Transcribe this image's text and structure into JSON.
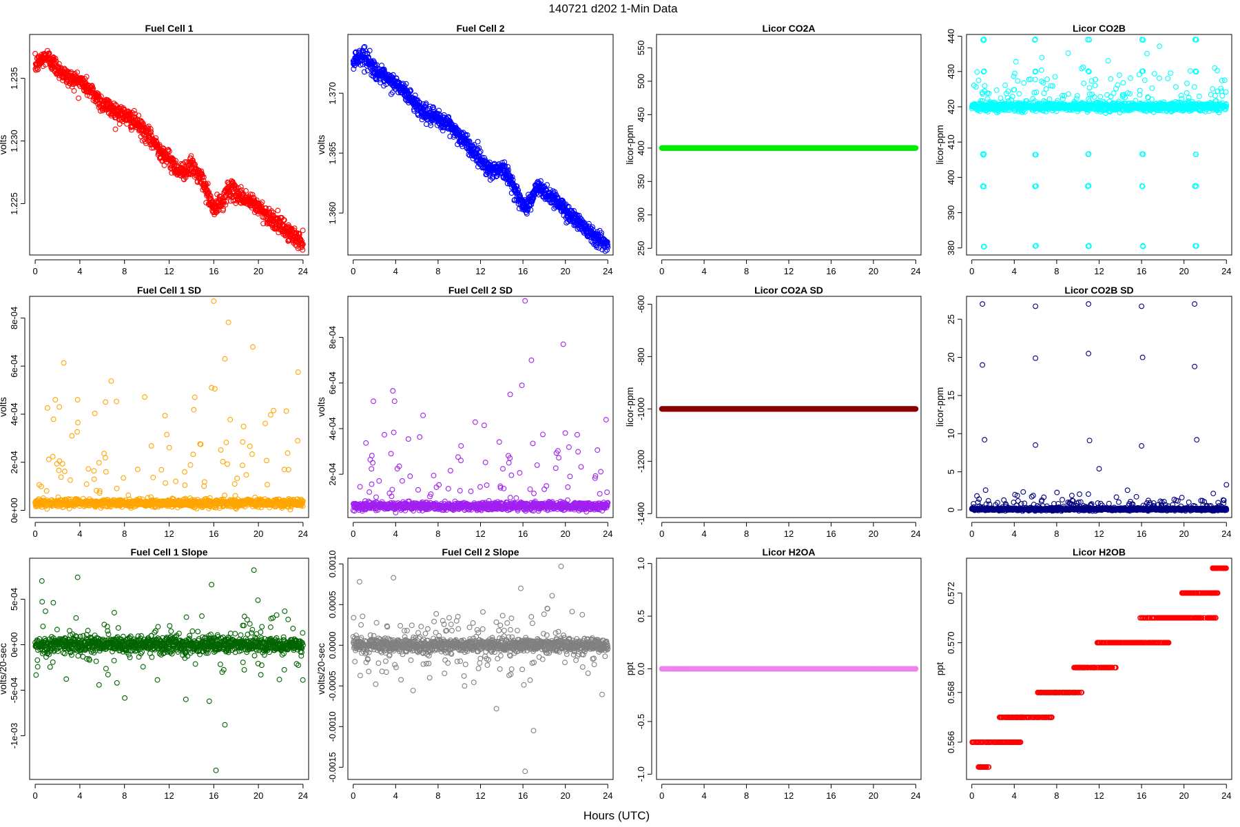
{
  "figure": {
    "title": "140721   d202   1-Min Data",
    "xlabel": "Hours (UTC)"
  },
  "chart_data": [
    {
      "type": "scatter",
      "title": "Fuel Cell 1",
      "ylabel": "volts",
      "color": "#ff0000",
      "xlim": [
        -0.5,
        24.5
      ],
      "ylim": [
        1.2209,
        1.2385
      ],
      "xticks": [
        0,
        4,
        8,
        12,
        16,
        20,
        24
      ],
      "xtick_labels": [
        "0",
        "4",
        "8",
        "12",
        "16",
        "20",
        "24"
      ],
      "yticks": [
        1.225,
        1.23,
        1.235
      ],
      "ytick_labels": [
        "1.225",
        "1.230",
        "1.235"
      ],
      "pattern": "trend",
      "trend": [
        [
          0,
          1.236
        ],
        [
          1,
          1.2368
        ],
        [
          2,
          1.2358
        ],
        [
          3,
          1.235
        ],
        [
          4,
          1.2348
        ],
        [
          5,
          1.234
        ],
        [
          6,
          1.233
        ],
        [
          7,
          1.2325
        ],
        [
          8,
          1.232
        ],
        [
          9,
          1.2315
        ],
        [
          10,
          1.2305
        ],
        [
          11,
          1.2295
        ],
        [
          12,
          1.2285
        ],
        [
          13,
          1.2275
        ],
        [
          14,
          1.228
        ],
        [
          15,
          1.2268
        ],
        [
          16,
          1.2245
        ],
        [
          16.8,
          1.2252
        ],
        [
          17.3,
          1.2262
        ],
        [
          19,
          1.2253
        ],
        [
          20,
          1.2247
        ],
        [
          22,
          1.2232
        ],
        [
          24,
          1.2218
        ]
      ],
      "noise": 0.00035
    },
    {
      "type": "scatter",
      "title": "Fuel Cell 2",
      "ylabel": "volts",
      "color": "#0000ff",
      "xlim": [
        -0.5,
        24.5
      ],
      "ylim": [
        1.3565,
        1.3749
      ],
      "xticks": [
        0,
        4,
        8,
        12,
        16,
        20,
        24
      ],
      "xtick_labels": [
        "0",
        "4",
        "8",
        "12",
        "16",
        "20",
        "24"
      ],
      "yticks": [
        1.36,
        1.365,
        1.37
      ],
      "ytick_labels": [
        "1.360",
        "1.365",
        "1.370"
      ],
      "pattern": "trend",
      "trend": [
        [
          0,
          1.3728
        ],
        [
          1,
          1.3732
        ],
        [
          2,
          1.372
        ],
        [
          3,
          1.3712
        ],
        [
          4,
          1.3708
        ],
        [
          5,
          1.37
        ],
        [
          6,
          1.369
        ],
        [
          7,
          1.3682
        ],
        [
          8,
          1.3678
        ],
        [
          9,
          1.3674
        ],
        [
          10,
          1.3665
        ],
        [
          11,
          1.3655
        ],
        [
          12,
          1.3645
        ],
        [
          13,
          1.3635
        ],
        [
          14,
          1.3638
        ],
        [
          15,
          1.3625
        ],
        [
          16,
          1.3605
        ],
        [
          16.8,
          1.361
        ],
        [
          17.3,
          1.3622
        ],
        [
          19,
          1.3612
        ],
        [
          20,
          1.3602
        ],
        [
          22,
          1.3587
        ],
        [
          24,
          1.3572
        ]
      ],
      "noise": 0.00035
    },
    {
      "type": "scatter",
      "title": "Licor CO2A",
      "ylabel": "licor-ppm",
      "color": "#00ee00",
      "xlim": [
        -0.5,
        24.5
      ],
      "ylim": [
        240,
        570
      ],
      "xticks": [
        0,
        4,
        8,
        12,
        16,
        20,
        24
      ],
      "xtick_labels": [
        "0",
        "4",
        "8",
        "12",
        "16",
        "20",
        "24"
      ],
      "yticks": [
        250,
        300,
        350,
        400,
        450,
        500,
        550
      ],
      "ytick_labels": [
        "250",
        "300",
        "350",
        "400",
        "450",
        "500",
        "550"
      ],
      "pattern": "constant",
      "value": 400
    },
    {
      "type": "scatter",
      "title": "Licor CO2B",
      "ylabel": "licor-ppm",
      "color": "#00ffff",
      "xlim": [
        -0.5,
        24.5
      ],
      "ylim": [
        378,
        440.5
      ],
      "xticks": [
        0,
        4,
        8,
        12,
        16,
        20,
        24
      ],
      "xtick_labels": [
        "0",
        "4",
        "8",
        "12",
        "16",
        "20",
        "24"
      ],
      "yticks": [
        380,
        390,
        400,
        410,
        420,
        430,
        440
      ],
      "ytick_labels": [
        "380",
        "390",
        "400",
        "410",
        "420",
        "430",
        "440"
      ],
      "pattern": "baseline",
      "base": 420,
      "noise": 0.6,
      "spike_prob": 0.12,
      "spike_amp": 6,
      "spike_dir": "up",
      "spike_times": [
        1.1,
        6,
        11,
        16.1,
        21.1
      ],
      "spike_values": [
        439,
        430,
        406.5,
        397.5,
        380.5
      ]
    },
    {
      "type": "scatter",
      "title": "Fuel Cell 1 SD",
      "ylabel": "volts",
      "color": "#ffa500",
      "xlim": [
        -0.5,
        24.5
      ],
      "ylim": [
        -3e-05,
        0.00089
      ],
      "xticks": [
        0,
        4,
        8,
        12,
        16,
        20,
        24
      ],
      "xtick_labels": [
        "0",
        "4",
        "8",
        "12",
        "16",
        "20",
        "24"
      ],
      "yticks": [
        0,
        0.0002,
        0.0004,
        0.0006,
        0.0008
      ],
      "ytick_labels": [
        "0e+00",
        "2e-04",
        "4e-04",
        "6e-04",
        "8e-04"
      ],
      "pattern": "baseline",
      "base": 3e-05,
      "noise": 8e-06,
      "spike_prob": 0.07,
      "spike_amp": 0.00022,
      "spike_dir": "up",
      "outliers": [
        [
          16,
          0.00087
        ],
        [
          19.5,
          0.00068
        ],
        [
          17,
          0.00063
        ],
        [
          15.8,
          0.00051
        ],
        [
          1.8,
          0.00046
        ],
        [
          3.8,
          0.00046
        ],
        [
          14.3,
          0.00047
        ]
      ]
    },
    {
      "type": "scatter",
      "title": "Fuel Cell 2 SD",
      "ylabel": "volts",
      "color": "#a020f0",
      "xlim": [
        -0.5,
        24.5
      ],
      "ylim": [
        1e-05,
        0.00098
      ],
      "xticks": [
        0,
        4,
        8,
        12,
        16,
        20,
        24
      ],
      "xtick_labels": [
        "0",
        "4",
        "8",
        "12",
        "16",
        "20",
        "24"
      ],
      "yticks": [
        0.0002,
        0.0004,
        0.0006,
        0.0008
      ],
      "ytick_labels": [
        "2e-04",
        "4e-04",
        "6e-04",
        "8e-04"
      ],
      "pattern": "baseline",
      "base": 6e-05,
      "noise": 8e-06,
      "spike_prob": 0.07,
      "spike_amp": 0.00022,
      "spike_dir": "up",
      "outliers": [
        [
          16.2,
          0.00096
        ],
        [
          19.8,
          0.00077
        ],
        [
          16.8,
          0.0007
        ],
        [
          15.9,
          0.00059
        ],
        [
          1.9,
          0.00052
        ],
        [
          3.9,
          0.00052
        ],
        [
          14.8,
          0.00055
        ]
      ]
    },
    {
      "type": "scatter",
      "title": "Licor CO2A SD",
      "ylabel": "licor-ppm",
      "color": "#8b0000",
      "xlim": [
        -0.5,
        24.5
      ],
      "ylim": [
        -1415,
        -570
      ],
      "xticks": [
        0,
        4,
        8,
        12,
        16,
        20,
        24
      ],
      "xtick_labels": [
        "0",
        "4",
        "8",
        "12",
        "16",
        "20",
        "24"
      ],
      "yticks": [
        -1400,
        -1200,
        -1000,
        -800,
        -600
      ],
      "ytick_labels": [
        "-1400",
        "-1200",
        "-1000",
        "-800",
        "-600"
      ],
      "pattern": "constant",
      "value": -1000
    },
    {
      "type": "scatter",
      "title": "Licor CO2B SD",
      "ylabel": "licor-ppm",
      "color": "#000080",
      "xlim": [
        -0.5,
        24.5
      ],
      "ylim": [
        -1,
        28
      ],
      "xticks": [
        0,
        4,
        8,
        12,
        16,
        20,
        24
      ],
      "xtick_labels": [
        "0",
        "4",
        "8",
        "12",
        "16",
        "20",
        "24"
      ],
      "yticks": [
        0,
        5,
        10,
        15,
        20,
        25
      ],
      "ytick_labels": [
        "0",
        "5",
        "10",
        "15",
        "20",
        "25"
      ],
      "pattern": "baseline",
      "base": 0.1,
      "noise": 0.08,
      "spike_prob": 0.12,
      "spike_amp": 0.9,
      "spike_dir": "up",
      "outliers": [
        [
          1,
          27
        ],
        [
          6,
          26.7
        ],
        [
          11,
          27
        ],
        [
          16,
          26.7
        ],
        [
          21,
          27
        ],
        [
          1,
          19
        ],
        [
          6,
          19.9
        ],
        [
          11,
          20.5
        ],
        [
          16.1,
          20
        ],
        [
          21,
          18.8
        ],
        [
          1.2,
          9.2
        ],
        [
          6,
          8.5
        ],
        [
          11.1,
          9.1
        ],
        [
          16,
          8.4
        ],
        [
          21.2,
          9.2
        ],
        [
          12,
          5.4
        ],
        [
          24,
          3.3
        ],
        [
          1.3,
          2.6
        ]
      ]
    },
    {
      "type": "scatter",
      "title": "Fuel Cell 1 Slope",
      "ylabel": "volts/20-sec",
      "color": "#006400",
      "xlim": [
        -0.5,
        24.5
      ],
      "ylim": [
        -0.00148,
        0.00095
      ],
      "xticks": [
        0,
        4,
        8,
        12,
        16,
        20,
        24
      ],
      "xtick_labels": [
        "0",
        "4",
        "8",
        "12",
        "16",
        "20",
        "24"
      ],
      "yticks": [
        -0.001,
        -0.0005,
        0,
        0.0005
      ],
      "ytick_labels": [
        "-1e-03",
        "-5e-04",
        "0e+00",
        "5e-04"
      ],
      "pattern": "baseline",
      "base": 0,
      "noise": 4e-05,
      "spike_prob": 0.14,
      "spike_amp": 0.00022,
      "spike_dir": "both",
      "outliers": [
        [
          16.2,
          -0.00138
        ],
        [
          17,
          -0.00088
        ],
        [
          19.6,
          0.00082
        ],
        [
          3.8,
          0.00074
        ],
        [
          0.6,
          0.0007
        ],
        [
          15.8,
          0.00066
        ],
        [
          15.6,
          -0.00062
        ],
        [
          13.5,
          -0.0006
        ]
      ]
    },
    {
      "type": "scatter",
      "title": "Fuel Cell 2 Slope",
      "ylabel": "volts/20-sec",
      "color": "#808080",
      "xlim": [
        -0.5,
        24.5
      ],
      "ylim": [
        -0.00165,
        0.00107
      ],
      "xticks": [
        0,
        4,
        8,
        12,
        16,
        20,
        24
      ],
      "xtick_labels": [
        "0",
        "4",
        "8",
        "12",
        "16",
        "20",
        "24"
      ],
      "yticks": [
        -0.0015,
        -0.001,
        -0.0005,
        0,
        0.0005,
        0.001
      ],
      "ytick_labels": [
        "-0.0015",
        "-0.0010",
        "-0.0005",
        "0.0000",
        "0.0005",
        "0.0010"
      ],
      "pattern": "baseline",
      "base": 0,
      "noise": 4e-05,
      "spike_prob": 0.14,
      "spike_amp": 0.00022,
      "spike_dir": "both",
      "outliers": [
        [
          16.2,
          -0.00155
        ],
        [
          19.6,
          0.00097
        ],
        [
          17,
          -0.00105
        ],
        [
          3.8,
          0.00083
        ],
        [
          0.6,
          0.00078
        ],
        [
          15.8,
          0.0007
        ],
        [
          13.5,
          -0.00078
        ],
        [
          10.5,
          -0.0005
        ]
      ]
    },
    {
      "type": "scatter",
      "title": "Licor H2OA",
      "ylabel": "ppt",
      "color": "#ee82ee",
      "xlim": [
        -0.5,
        24.5
      ],
      "ylim": [
        -1.05,
        1.05
      ],
      "xticks": [
        0,
        4,
        8,
        12,
        16,
        20,
        24
      ],
      "xtick_labels": [
        "0",
        "4",
        "8",
        "12",
        "16",
        "20",
        "24"
      ],
      "yticks": [
        -1,
        -0.5,
        0,
        0.5,
        1
      ],
      "ytick_labels": [
        "-1.0",
        "-0.5",
        "0.0",
        "0.5",
        "1.0"
      ],
      "pattern": "constant",
      "value": 0
    },
    {
      "type": "scatter",
      "title": "Licor H2OB",
      "ylabel": "ppt",
      "color": "#ff0000",
      "xlim": [
        -0.5,
        24.5
      ],
      "ylim": [
        0.5645,
        0.5734
      ],
      "xticks": [
        0,
        4,
        8,
        12,
        16,
        20,
        24
      ],
      "xtick_labels": [
        "0",
        "4",
        "8",
        "12",
        "16",
        "20",
        "24"
      ],
      "yticks": [
        0.566,
        0.568,
        0.57,
        0.572
      ],
      "ytick_labels": [
        "0.566",
        "0.568",
        "0.570",
        "0.572"
      ],
      "pattern": "steps",
      "steps": [
        [
          0,
          4.6,
          0.566
        ],
        [
          0.6,
          1.6,
          0.565
        ],
        [
          2.6,
          4.8,
          0.567
        ],
        [
          4.2,
          7.6,
          0.567
        ],
        [
          6.2,
          10.4,
          0.568
        ],
        [
          9.6,
          13.6,
          0.569
        ],
        [
          11.8,
          14.2,
          0.57
        ],
        [
          13.2,
          18.6,
          0.57
        ],
        [
          15.8,
          20.4,
          0.571
        ],
        [
          17.4,
          23,
          0.571
        ],
        [
          19.8,
          23.2,
          0.572
        ],
        [
          22.6,
          24,
          0.573
        ]
      ]
    }
  ]
}
